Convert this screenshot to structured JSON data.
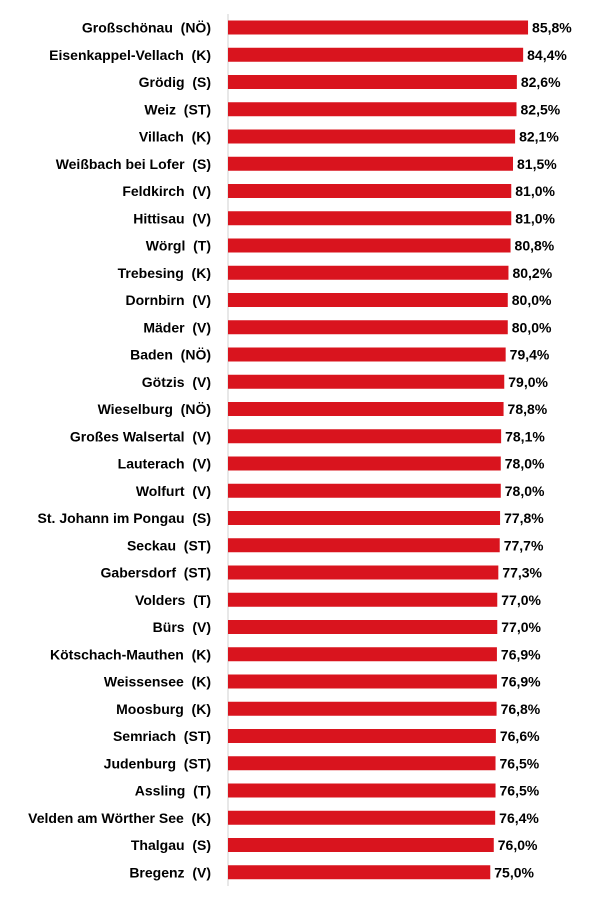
{
  "chart_data": {
    "type": "bar",
    "orientation": "horizontal",
    "title": "",
    "xlabel": "",
    "ylabel": "",
    "grid": false,
    "legend": "none",
    "bar_color": "#d9141e",
    "axis_color": "#d0d0d0",
    "categories": [
      "Großschönau  (NÖ)",
      "Eisenkappel-Vellach  (K)",
      "Grödig  (S)",
      "Weiz  (ST)",
      "Villach  (K)",
      "Weißbach bei Lofer  (S)",
      "Feldkirch  (V)",
      "Hittisau  (V)",
      "Wörgl  (T)",
      "Trebesing  (K)",
      "Dornbirn  (V)",
      "Mäder  (V)",
      "Baden  (NÖ)",
      "Götzis  (V)",
      "Wieselburg  (NÖ)",
      "Großes Walsertal  (V)",
      "Lauterach  (V)",
      "Wolfurt  (V)",
      "St. Johann im Pongau  (S)",
      "Seckau  (ST)",
      "Gabersdorf  (ST)",
      "Volders  (T)",
      "Bürs  (V)",
      "Kötschach-Mauthen  (K)",
      "Weissensee  (K)",
      "Moosburg  (K)",
      "Semriach  (ST)",
      "Judenburg  (ST)",
      "Assling  (T)",
      "Velden am Wörther See  (K)",
      "Thalgau  (S)",
      "Bregenz  (V)"
    ],
    "values": [
      85.8,
      84.4,
      82.6,
      82.5,
      82.1,
      81.5,
      81.0,
      81.0,
      80.8,
      80.2,
      80.0,
      80.0,
      79.4,
      79.0,
      78.8,
      78.1,
      78.0,
      78.0,
      77.8,
      77.7,
      77.3,
      77.0,
      77.0,
      76.9,
      76.9,
      76.8,
      76.6,
      76.5,
      76.5,
      76.4,
      76.0,
      75.0
    ],
    "value_labels": [
      "85,8%",
      "84,4%",
      "82,6%",
      "82,5%",
      "82,1%",
      "81,5%",
      "81,0%",
      "81,0%",
      "80,8%",
      "80,2%",
      "80,0%",
      "80,0%",
      "79,4%",
      "79,0%",
      "78,8%",
      "78,1%",
      "78,0%",
      "78,0%",
      "77,8%",
      "77,7%",
      "77,3%",
      "77,0%",
      "77,0%",
      "76,9%",
      "76,9%",
      "76,8%",
      "76,6%",
      "76,5%",
      "76,5%",
      "76,4%",
      "76,0%",
      "75,0%"
    ],
    "xlim": [
      0,
      100
    ]
  }
}
